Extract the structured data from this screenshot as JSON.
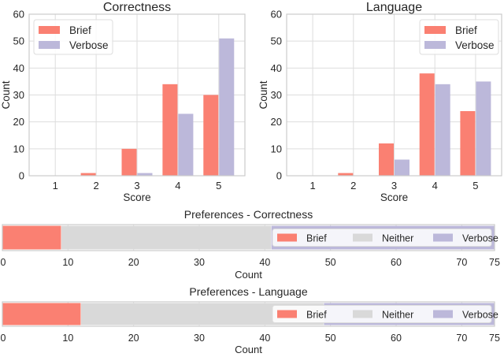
{
  "colors": {
    "brief": "#fa8072",
    "verbose": "#bcb8da",
    "neither": "#d9d9d9",
    "grid": "#dddddd",
    "frame": "#cccccc"
  },
  "chart_data": [
    {
      "type": "bar",
      "title": "Correctness",
      "xlabel": "Score",
      "ylabel": "Count",
      "categories": [
        "1",
        "2",
        "3",
        "4",
        "5"
      ],
      "ylim": [
        0,
        60
      ],
      "yticks": [
        "0",
        "10",
        "20",
        "30",
        "40",
        "50",
        "60"
      ],
      "legend": "top-left",
      "grid": true,
      "series": [
        {
          "name": "Brief",
          "values": [
            0,
            1,
            10,
            34,
            30
          ]
        },
        {
          "name": "Verbose",
          "values": [
            0,
            0,
            1,
            23,
            51
          ]
        }
      ]
    },
    {
      "type": "bar",
      "title": "Language",
      "xlabel": "Score",
      "ylabel": "Count",
      "categories": [
        "1",
        "2",
        "3",
        "4",
        "5"
      ],
      "ylim": [
        0,
        60
      ],
      "yticks": [
        "0",
        "10",
        "20",
        "30",
        "40",
        "50",
        "60"
      ],
      "legend": "top-right",
      "grid": true,
      "series": [
        {
          "name": "Brief",
          "values": [
            0,
            1,
            12,
            38,
            24
          ]
        },
        {
          "name": "Verbose",
          "values": [
            0,
            0,
            6,
            34,
            35
          ]
        }
      ]
    },
    {
      "type": "bar",
      "orientation": "horizontal-stacked",
      "title": "Preferences - Correctness",
      "xlabel": "Count",
      "xlim": [
        0,
        75
      ],
      "xticks": [
        "0",
        "10",
        "20",
        "30",
        "40",
        "50",
        "60",
        "70",
        "75"
      ],
      "legend": "right",
      "grid": true,
      "series": [
        {
          "name": "Brief",
          "values": [
            9
          ]
        },
        {
          "name": "Neither",
          "values": [
            32
          ]
        },
        {
          "name": "Verbose",
          "values": [
            34
          ]
        }
      ]
    },
    {
      "type": "bar",
      "orientation": "horizontal-stacked",
      "title": "Preferences - Language",
      "xlabel": "Count",
      "xlim": [
        0,
        75
      ],
      "xticks": [
        "0",
        "10",
        "20",
        "30",
        "40",
        "50",
        "60",
        "70",
        "75"
      ],
      "legend": "right",
      "grid": true,
      "series": [
        {
          "name": "Brief",
          "values": [
            12
          ]
        },
        {
          "name": "Neither",
          "values": [
            37
          ]
        },
        {
          "name": "Verbose",
          "values": [
            26
          ]
        }
      ]
    }
  ]
}
